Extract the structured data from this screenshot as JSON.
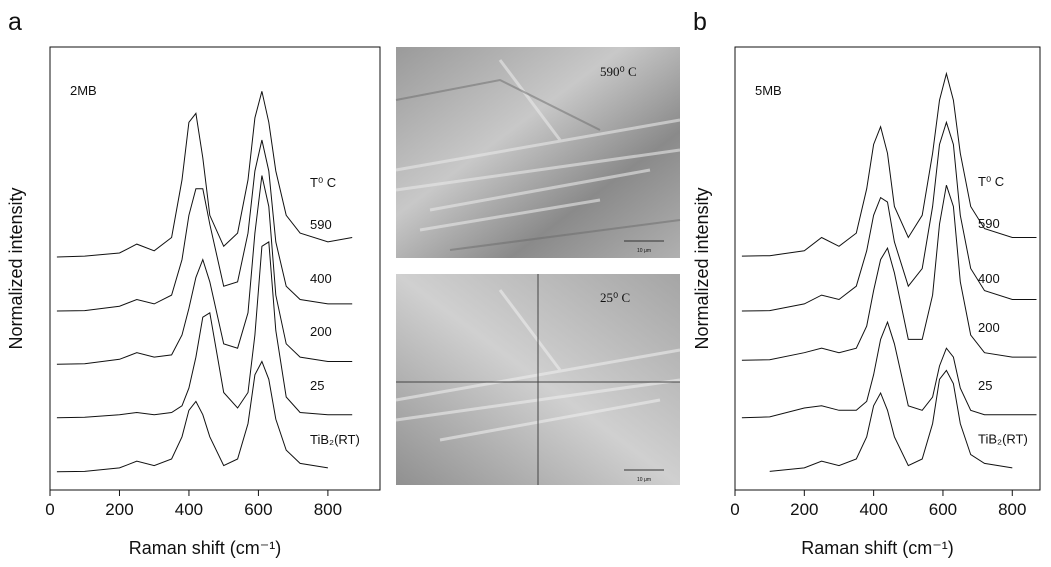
{
  "chart_data": [
    {
      "type": "line",
      "panel_label": "a",
      "label": "2MB",
      "legend_title": "T⁰ C",
      "x_label": "Raman shift (cm⁻¹)",
      "y_label": "Normalized intensity",
      "xlim": [
        0,
        950
      ],
      "xticks": [
        0,
        200,
        400,
        600,
        800
      ],
      "ylim": [
        0,
        100
      ],
      "x": [
        20,
        100,
        200,
        250,
        300,
        350,
        380,
        400,
        420,
        440,
        460,
        500,
        540,
        570,
        590,
        610,
        630,
        650,
        680,
        720,
        800,
        870
      ],
      "series": [
        {
          "name": "590",
          "color": "#111111",
          "values": [
            52.6,
            52.8,
            53.5,
            55.5,
            54,
            57,
            70,
            83,
            85,
            75,
            62,
            55,
            58,
            70,
            84,
            90,
            83,
            72,
            62,
            58,
            56,
            57
          ]
        },
        {
          "name": "400",
          "color": "#111111",
          "values": [
            40.4,
            40.5,
            41.5,
            43,
            42,
            44,
            52,
            62,
            68,
            68,
            60,
            46,
            47,
            58,
            72,
            79,
            72,
            56,
            46,
            43,
            42,
            42
          ]
        },
        {
          "name": "200",
          "color": "#111111",
          "values": [
            28.4,
            28.5,
            29.5,
            31,
            30,
            30.5,
            35,
            41,
            48,
            52,
            47,
            33,
            32,
            40,
            58,
            71,
            64,
            44,
            33,
            30,
            29,
            29
          ]
        },
        {
          "name": "25",
          "color": "#111111",
          "values": [
            16.3,
            16.4,
            17,
            17.5,
            17,
            17.5,
            19,
            23,
            30,
            39,
            40,
            22,
            18.5,
            22,
            35,
            55,
            56,
            36,
            21,
            17.5,
            17,
            17
          ]
        },
        {
          "name": "TiB₂(RT)",
          "color": "#111111",
          "values": [
            4.1,
            4.2,
            5,
            6.5,
            5.5,
            7,
            12,
            18,
            20,
            17,
            12,
            5.5,
            7,
            15,
            26,
            29,
            25,
            16,
            9,
            6,
            5,
            null
          ]
        }
      ]
    },
    {
      "type": "line",
      "panel_label": "b",
      "label": "5MB",
      "legend_title": "T⁰ C",
      "x_label": "Raman shift (cm⁻¹)",
      "y_label": "Normalized intensity",
      "xlim": [
        0,
        880
      ],
      "xticks": [
        0,
        200,
        400,
        600,
        800
      ],
      "ylim": [
        0,
        100
      ],
      "x": [
        20,
        100,
        200,
        250,
        300,
        350,
        380,
        400,
        420,
        440,
        460,
        500,
        540,
        570,
        590,
        610,
        630,
        650,
        680,
        720,
        800,
        870
      ],
      "series": [
        {
          "name": "590",
          "color": "#111111",
          "values": [
            52.8,
            52.9,
            54,
            57,
            55,
            58,
            68,
            78,
            82,
            76,
            64,
            57,
            62,
            76,
            88,
            94,
            88,
            76,
            64,
            59,
            57,
            57
          ]
        },
        {
          "name": "400",
          "color": "#111111",
          "values": [
            40.4,
            40.5,
            42,
            44,
            43,
            46,
            54,
            62,
            66,
            65,
            56,
            46,
            50,
            64,
            78,
            83,
            78,
            62,
            50,
            45,
            43,
            43
          ]
        },
        {
          "name": "200",
          "color": "#111111",
          "values": [
            29.3,
            29.4,
            31,
            32,
            31,
            32,
            37,
            45,
            52,
            54.6,
            49,
            34,
            34,
            44,
            60,
            68.8,
            64,
            47,
            35,
            31,
            30,
            30
          ]
        },
        {
          "name": "25",
          "color": "#111111",
          "values": [
            16.3,
            16.5,
            18.5,
            19,
            18,
            18,
            20,
            26,
            34,
            37.9,
            33,
            19,
            18,
            21,
            28,
            32,
            30,
            23,
            18,
            17,
            17,
            17
          ]
        },
        {
          "name": "TiB₂(RT)",
          "color": "#111111",
          "values": [
            null,
            4.2,
            5,
            6.5,
            5.5,
            7,
            12,
            19,
            21.9,
            18,
            12,
            5.5,
            7,
            15,
            25,
            27,
            24,
            15,
            8,
            6,
            5,
            null
          ]
        }
      ]
    }
  ],
  "micrographs": [
    {
      "label": "590⁰ C",
      "scale": "10 μm"
    },
    {
      "label": "25⁰ C",
      "scale": "10 μm"
    }
  ]
}
